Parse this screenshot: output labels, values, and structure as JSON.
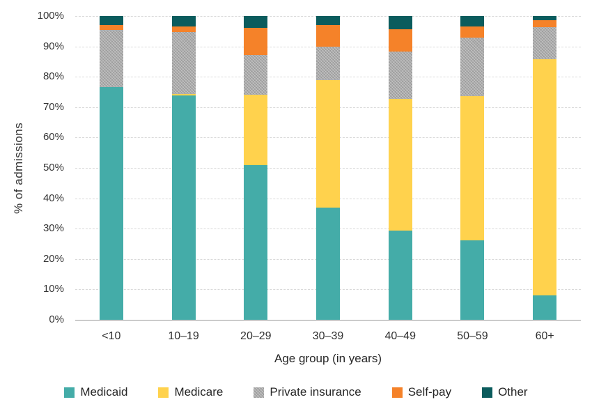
{
  "chart_data": {
    "type": "bar",
    "stacked": true,
    "percent": true,
    "xlabel": "Age group (in years)",
    "ylabel": "% of admissions",
    "ylim": [
      0,
      100
    ],
    "grid": true,
    "legend_position": "bottom",
    "yticks": [
      {
        "value": 0,
        "label": "0%"
      },
      {
        "value": 10,
        "label": "10%"
      },
      {
        "value": 20,
        "label": "20%"
      },
      {
        "value": 30,
        "label": "30%"
      },
      {
        "value": 40,
        "label": "40%"
      },
      {
        "value": 50,
        "label": "50%"
      },
      {
        "value": 60,
        "label": "60%"
      },
      {
        "value": 70,
        "label": "70%"
      },
      {
        "value": 80,
        "label": "80%"
      },
      {
        "value": 90,
        "label": "90%"
      },
      {
        "value": 100,
        "label": "100%"
      }
    ],
    "categories": [
      "<10",
      "10–19",
      "20–29",
      "30–39",
      "40–49",
      "50–59",
      "60+"
    ],
    "series": [
      {
        "name": "Medicaid",
        "color": "#44ACA8",
        "pattern": false,
        "values": [
          76.5,
          73.8,
          51.0,
          37.0,
          29.3,
          26.2,
          8.0
        ]
      },
      {
        "name": "Medicare",
        "color": "#FFD24D",
        "pattern": false,
        "values": [
          0.0,
          0.5,
          23.2,
          41.9,
          43.3,
          47.5,
          77.8
        ]
      },
      {
        "name": "Private insurance",
        "color": "#ABABAB",
        "pattern": true,
        "values": [
          19.0,
          20.5,
          13.0,
          11.1,
          15.7,
          19.2,
          10.6
        ]
      },
      {
        "name": "Self-pay",
        "color": "#F58229",
        "pattern": false,
        "values": [
          1.5,
          1.8,
          9.0,
          7.1,
          7.3,
          3.7,
          2.3
        ]
      },
      {
        "name": "Other",
        "color": "#0B5C5D",
        "pattern": false,
        "values": [
          3.0,
          3.4,
          3.8,
          2.9,
          4.4,
          3.4,
          1.3
        ]
      }
    ]
  }
}
